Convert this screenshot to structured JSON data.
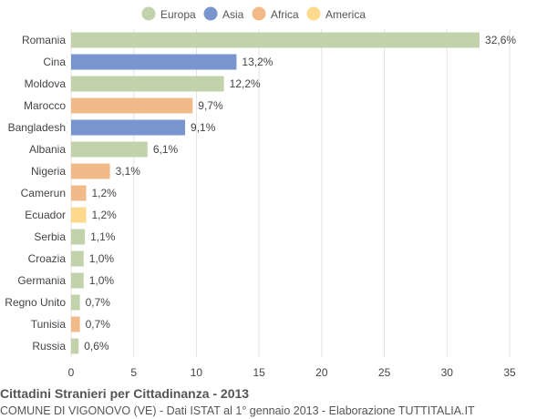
{
  "chart_data": {
    "type": "bar",
    "orientation": "horizontal",
    "categories": [
      "Romania",
      "Cina",
      "Moldova",
      "Marocco",
      "Bangladesh",
      "Albania",
      "Nigeria",
      "Camerun",
      "Ecuador",
      "Serbia",
      "Croazia",
      "Germania",
      "Regno Unito",
      "Tunisia",
      "Russia"
    ],
    "values": [
      32.6,
      13.2,
      12.2,
      9.7,
      9.1,
      6.1,
      3.1,
      1.2,
      1.2,
      1.1,
      1.0,
      1.0,
      0.7,
      0.7,
      0.6
    ],
    "value_labels": [
      "32,6%",
      "13,2%",
      "12,2%",
      "9,7%",
      "9,1%",
      "6,1%",
      "3,1%",
      "1,2%",
      "1,2%",
      "1,1%",
      "1,0%",
      "1,0%",
      "0,7%",
      "0,7%",
      "0,6%"
    ],
    "groups": [
      "Europa",
      "Asia",
      "Europa",
      "Africa",
      "Asia",
      "Europa",
      "Africa",
      "Africa",
      "America",
      "Europa",
      "Europa",
      "Europa",
      "Europa",
      "Africa",
      "Europa"
    ],
    "legend": [
      {
        "name": "Europa",
        "color": "#c2d3ac"
      },
      {
        "name": "Asia",
        "color": "#7895cd"
      },
      {
        "name": "Africa",
        "color": "#f2ba89"
      },
      {
        "name": "America",
        "color": "#fed98c"
      }
    ],
    "legend_placement": "top-center",
    "xlim": [
      0,
      35
    ],
    "xticks": [
      0,
      5,
      10,
      15,
      20,
      25,
      30,
      35
    ],
    "grid": "vertical",
    "title": "Cittadini Stranieri per Cittadinanza - 2013",
    "subtitle": "COMUNE DI VIGONOVO (VE) - Dati ISTAT al 1° gennaio 2013 - Elaborazione TUTTITALIA.IT"
  }
}
